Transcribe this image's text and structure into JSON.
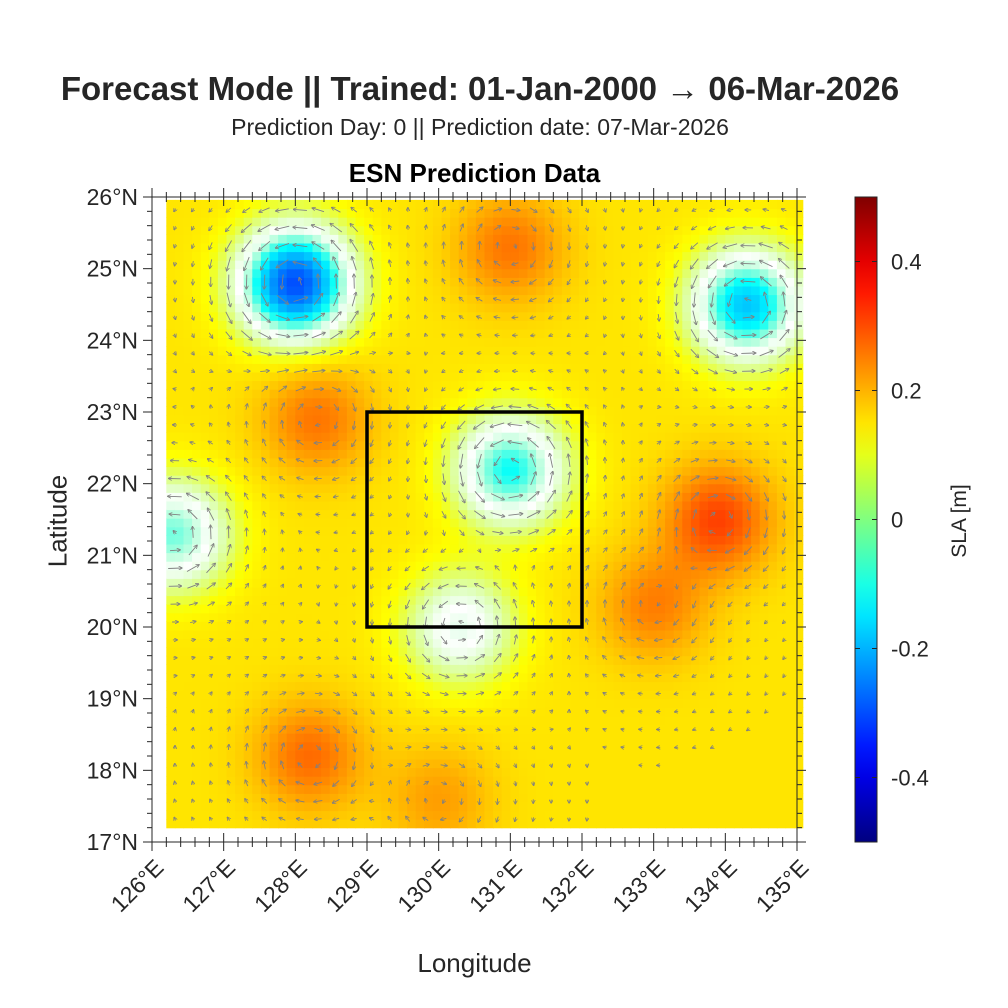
{
  "figure": {
    "supertitle": "Forecast Mode || Trained: 01-Jan-2000 → 06-Mar-2026",
    "subtitle": "Prediction Day: 0 || Prediction date: 07-Mar-2026",
    "axes_title": "ESN Prediction Data",
    "xlabel": "Longitude",
    "ylabel": "Latitude",
    "colorbar_label": "SLA [m]"
  },
  "map": {
    "lon_range": [
      126,
      135
    ],
    "lat_range": [
      17,
      26
    ],
    "lon_ticks": [
      126,
      127,
      128,
      129,
      130,
      131,
      132,
      133,
      134,
      135
    ],
    "lon_tick_labels": [
      "126°E",
      "127°E",
      "128°E",
      "129°E",
      "130°E",
      "131°E",
      "132°E",
      "133°E",
      "134°E",
      "135°E"
    ],
    "lat_ticks": [
      17,
      18,
      19,
      20,
      21,
      22,
      23,
      24,
      25,
      26
    ],
    "lat_tick_labels": [
      "17°N",
      "18°N",
      "19°N",
      "20°N",
      "21°N",
      "22°N",
      "23°N",
      "24°N",
      "25°N",
      "26°N"
    ],
    "data_extent": {
      "lon": [
        126.2,
        135
      ],
      "lat": [
        17.2,
        25.9
      ]
    },
    "background_level": 0.15,
    "features": [
      {
        "type": "low",
        "lon": 128.0,
        "lat": 24.8,
        "sla": -0.3
      },
      {
        "type": "low",
        "lon": 134.3,
        "lat": 24.5,
        "sla": -0.18
      },
      {
        "type": "low",
        "lon": 131.0,
        "lat": 22.2,
        "sla": -0.12
      },
      {
        "type": "low",
        "lon": 130.3,
        "lat": 20.0,
        "sla": -0.02
      },
      {
        "type": "low",
        "lon": 126.3,
        "lat": 21.3,
        "sla": -0.08
      },
      {
        "type": "high",
        "lon": 131.0,
        "lat": 25.3,
        "sla": 0.26
      },
      {
        "type": "high",
        "lon": 128.3,
        "lat": 22.9,
        "sla": 0.26
      },
      {
        "type": "high",
        "lon": 133.9,
        "lat": 21.5,
        "sla": 0.31
      },
      {
        "type": "high",
        "lon": 133.0,
        "lat": 20.3,
        "sla": 0.25
      },
      {
        "type": "high",
        "lon": 128.2,
        "lat": 18.2,
        "sla": 0.27
      },
      {
        "type": "high",
        "lon": 130.0,
        "lat": 17.6,
        "sla": 0.22
      }
    ],
    "box": {
      "lon": [
        129,
        132
      ],
      "lat": [
        20,
        23
      ],
      "color": "#000000"
    },
    "vector_color": "#808080"
  },
  "colorbar": {
    "colormap": "jet",
    "range": [
      -0.5,
      0.5
    ],
    "ticks": [
      -0.4,
      -0.2,
      0,
      0.2,
      0.4
    ],
    "tick_labels": [
      "-0.4",
      "-0.2",
      "0",
      "0.2",
      "0.4"
    ]
  }
}
